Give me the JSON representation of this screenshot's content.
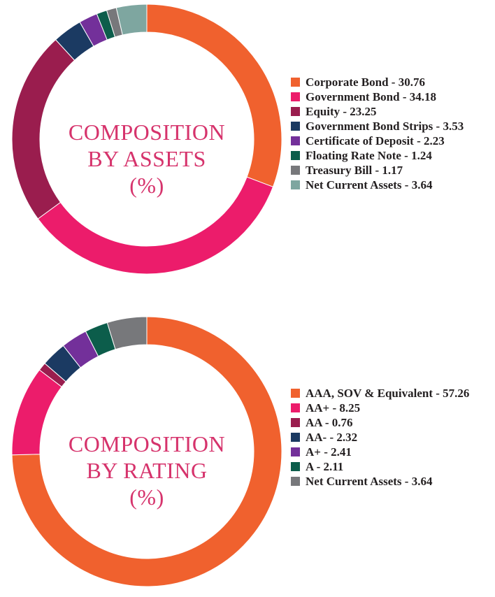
{
  "chart_data": [
    {
      "type": "pie",
      "title": "COMPOSITION BY ASSETS (%)",
      "title_lines": [
        "COMPOSITION",
        "BY ASSETS",
        "(%)"
      ],
      "categories": [
        "Corporate Bond",
        "Government Bond",
        "Equity",
        "Government Bond Strips",
        "Certificate of Deposit",
        "Floating Rate Note",
        "Treasury Bill",
        "Net Current Assets"
      ],
      "values": [
        30.76,
        34.18,
        23.25,
        3.53,
        2.23,
        1.24,
        1.17,
        3.64
      ],
      "legend_labels": [
        "Corporate Bond - 30.76",
        "Government Bond - 34.18",
        "Equity - 23.25",
        "Government Bond Strips - 3.53",
        "Certificate of Deposit - 2.23",
        "Floating Rate Note - 1.24",
        "Treasury Bill - 1.17",
        "Net Current Assets - 3.64"
      ],
      "colors": [
        "#f0612e",
        "#ec1c6b",
        "#9a1d4e",
        "#1b3a62",
        "#73309a",
        "#0c5d4b",
        "#77787b",
        "#7ea6a0"
      ],
      "legend": "right"
    },
    {
      "type": "pie",
      "title": "COMPOSITION BY RATING (%)",
      "title_lines": [
        "COMPOSITION",
        "BY RATING",
        "(%)"
      ],
      "categories": [
        "AAA, SOV & Equivalent",
        "AA+",
        "AA",
        "AA-",
        "A+",
        "A",
        "Net Current Assets"
      ],
      "values": [
        57.26,
        8.25,
        0.76,
        2.32,
        2.41,
        2.11,
        3.64
      ],
      "legend_labels": [
        "AAA, SOV & Equivalent - 57.26",
        "AA+ - 8.25",
        "AA - 0.76",
        "AA- - 2.32",
        "A+ - 2.41",
        "A - 2.11",
        "Net Current Assets - 3.64"
      ],
      "colors": [
        "#f0612e",
        "#ec1c6b",
        "#9a1d4e",
        "#1b3a62",
        "#73309a",
        "#0c5d4b",
        "#77787b"
      ],
      "legend": "right"
    }
  ]
}
